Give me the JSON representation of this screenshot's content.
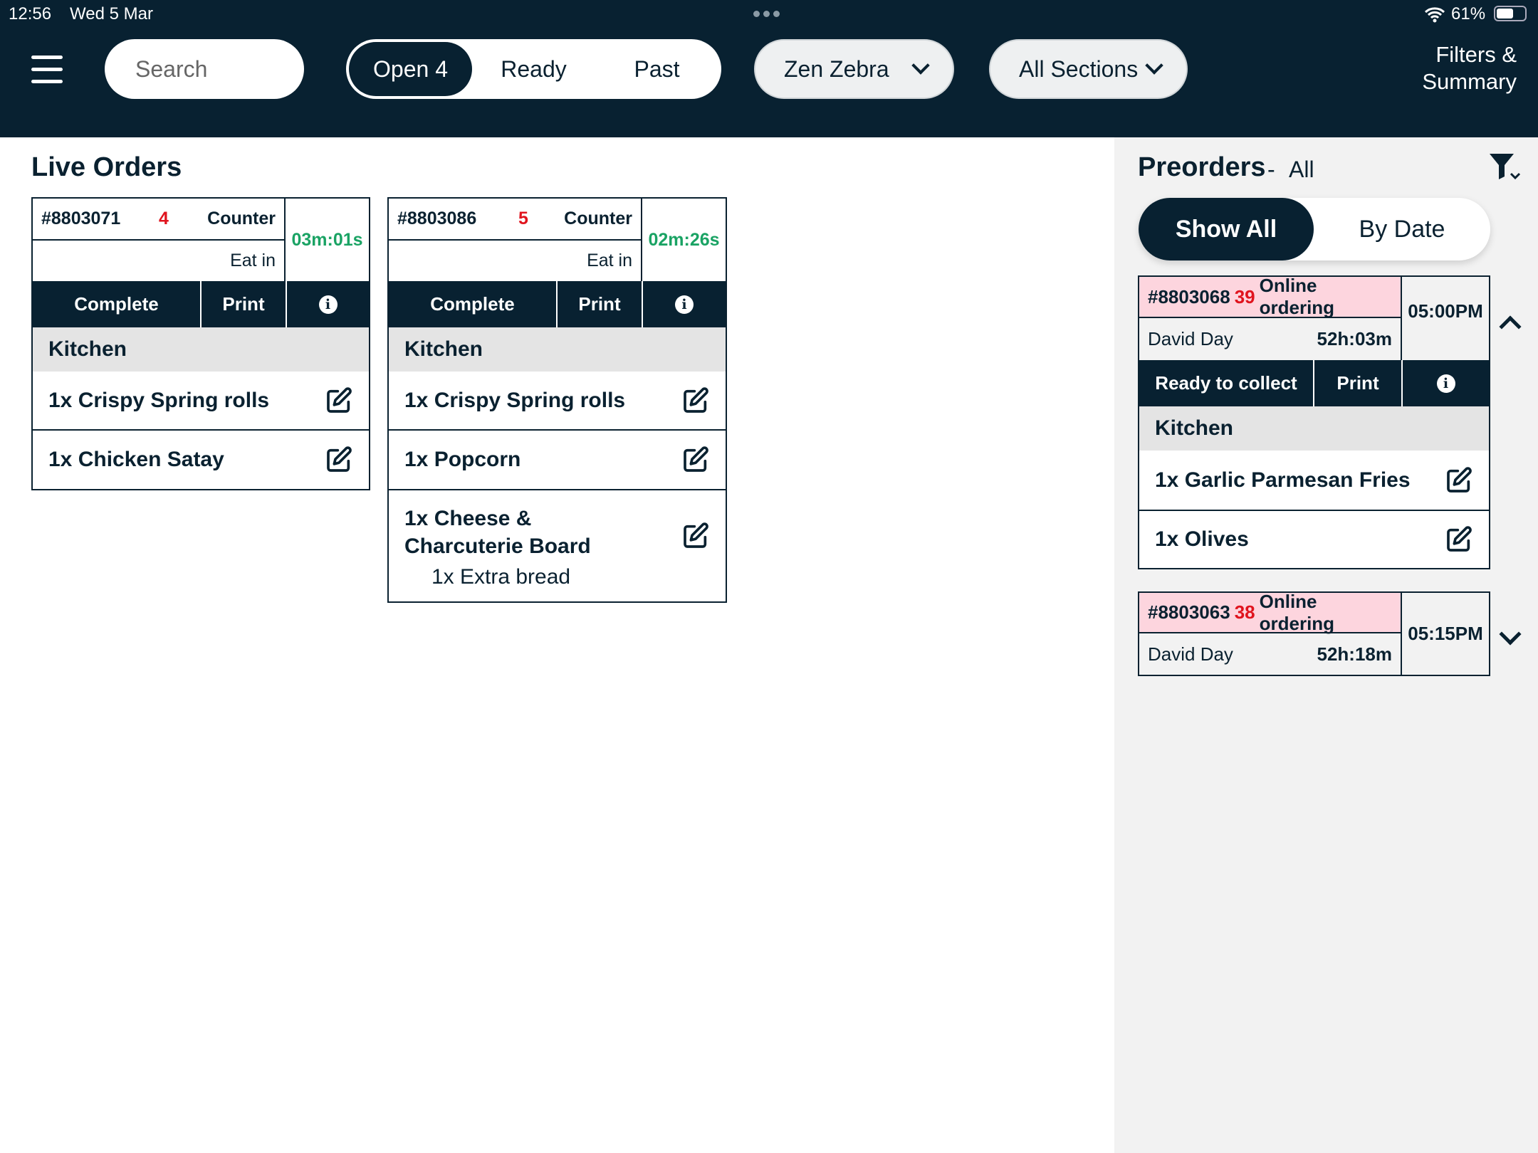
{
  "status_bar": {
    "time": "12:56",
    "date": "Wed 5 Mar",
    "battery": "61%"
  },
  "header": {
    "search_placeholder": "Search",
    "tabs": [
      {
        "label": "Open 4",
        "active": true
      },
      {
        "label": "Ready"
      },
      {
        "label": "Past"
      }
    ],
    "venue": "Zen Zebra",
    "sections": "All Sections",
    "filters_line1": "Filters &",
    "filters_line2": "Summary"
  },
  "live_orders": {
    "title": "Live Orders",
    "orders": [
      {
        "id": "#8803071",
        "table": "4",
        "source": "Counter",
        "type": "Eat in",
        "timer": "03m:01s",
        "complete": "Complete",
        "print": "Print",
        "section": "Kitchen",
        "items": [
          {
            "name": "1x Crispy Spring rolls"
          },
          {
            "name": "1x Chicken Satay"
          }
        ]
      },
      {
        "id": "#8803086",
        "table": "5",
        "source": "Counter",
        "type": "Eat in",
        "timer": "02m:26s",
        "complete": "Complete",
        "print": "Print",
        "section": "Kitchen",
        "items": [
          {
            "name": "1x Crispy Spring rolls"
          },
          {
            "name": "1x Popcorn"
          },
          {
            "name": "1x Cheese & Charcuterie Board",
            "modifier": "1x Extra bread"
          }
        ]
      }
    ]
  },
  "preorders": {
    "title": "Preorders",
    "filter_label": "All",
    "toggle": [
      {
        "label": "Show All",
        "active": true
      },
      {
        "label": "By Date"
      }
    ],
    "orders": [
      {
        "id": "#8803068",
        "number": "39",
        "source": "Online ordering",
        "customer": "David Day",
        "elapsed": "52h:03m",
        "time": "05:00PM",
        "expanded": true,
        "action": "Ready to collect",
        "print": "Print",
        "section": "Kitchen",
        "items": [
          {
            "name": "1x Garlic Parmesan Fries"
          },
          {
            "name": "1x Olives"
          }
        ]
      },
      {
        "id": "#8803063",
        "number": "38",
        "source": "Online ordering",
        "customer": "David Day",
        "elapsed": "52h:18m",
        "time": "05:15PM",
        "expanded": false
      }
    ]
  },
  "colors": {
    "navy": "#082131",
    "accent_red": "#e0141e",
    "timer_green": "#1aa364",
    "preorder_pink": "#fdd5de"
  }
}
